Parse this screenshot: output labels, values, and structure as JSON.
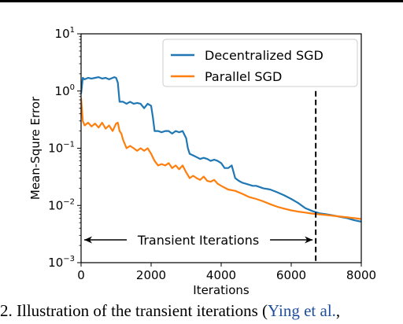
{
  "chart_data": {
    "type": "line",
    "title": "",
    "xlabel": "Iterations",
    "ylabel": "Mean-Squre Error",
    "xlim": [
      0,
      8000
    ],
    "ylim": [
      0.001,
      10
    ],
    "yscale": "log",
    "grid": false,
    "legend_placement": "top-right",
    "x_ticks": [
      {
        "value": 0,
        "label": "0"
      },
      {
        "value": 2000,
        "label": "2000"
      },
      {
        "value": 4000,
        "label": "4000"
      },
      {
        "value": 6000,
        "label": "6000"
      },
      {
        "value": 8000,
        "label": "8000"
      }
    ],
    "y_ticks": [
      {
        "value": 10,
        "base": "10",
        "exp": "1"
      },
      {
        "value": 1,
        "base": "10",
        "exp": "0"
      },
      {
        "value": 0.1,
        "base": "10",
        "exp": "−1"
      },
      {
        "value": 0.01,
        "base": "10",
        "exp": "−2"
      },
      {
        "value": 0.001,
        "base": "10",
        "exp": "−3"
      }
    ],
    "series": [
      {
        "name": "Decentralized SGD",
        "color": "#1f77b4",
        "x": [
          0,
          50,
          100,
          200,
          300,
          400,
          500,
          600,
          700,
          800,
          900,
          950,
          1000,
          1050,
          1100,
          1200,
          1300,
          1400,
          1500,
          1600,
          1700,
          1800,
          1900,
          2000,
          2050,
          2100,
          2200,
          2300,
          2400,
          2500,
          2600,
          2700,
          2800,
          2900,
          3000,
          3050,
          3100,
          3200,
          3300,
          3400,
          3500,
          3600,
          3700,
          3800,
          3900,
          4000,
          4100,
          4200,
          4300,
          4400,
          4500,
          4600,
          4700,
          4800,
          4900,
          5000,
          5200,
          5400,
          5600,
          5800,
          6000,
          6200,
          6400,
          6600,
          6800,
          7000,
          7200,
          7400,
          7600,
          7800,
          8000
        ],
        "y": [
          0.9,
          1.7,
          1.6,
          1.7,
          1.65,
          1.7,
          1.75,
          1.65,
          1.7,
          1.6,
          1.7,
          1.75,
          1.7,
          1.4,
          0.65,
          0.65,
          0.6,
          0.65,
          0.6,
          0.62,
          0.6,
          0.5,
          0.6,
          0.55,
          0.35,
          0.2,
          0.2,
          0.19,
          0.2,
          0.2,
          0.18,
          0.2,
          0.19,
          0.2,
          0.15,
          0.1,
          0.08,
          0.075,
          0.07,
          0.065,
          0.068,
          0.065,
          0.06,
          0.063,
          0.06,
          0.055,
          0.045,
          0.045,
          0.05,
          0.03,
          0.027,
          0.025,
          0.024,
          0.023,
          0.022,
          0.022,
          0.02,
          0.019,
          0.017,
          0.015,
          0.013,
          0.011,
          0.009,
          0.008,
          0.0073,
          0.007,
          0.0067,
          0.0063,
          0.006,
          0.0055,
          0.0052
        ]
      },
      {
        "name": "Parallel SGD",
        "color": "#ff7f0e",
        "x": [
          0,
          50,
          100,
          200,
          300,
          400,
          500,
          600,
          700,
          800,
          900,
          1000,
          1050,
          1100,
          1150,
          1200,
          1300,
          1400,
          1500,
          1600,
          1700,
          1800,
          1900,
          2000,
          2100,
          2200,
          2300,
          2400,
          2500,
          2600,
          2700,
          2800,
          2900,
          3000,
          3100,
          3200,
          3300,
          3400,
          3500,
          3600,
          3700,
          3800,
          3900,
          4000,
          4200,
          4400,
          4600,
          4800,
          5000,
          5200,
          5400,
          5600,
          5800,
          6000,
          6200,
          6400,
          6600,
          6800,
          7000,
          7200,
          7400,
          7600,
          7800,
          8000
        ],
        "y": [
          0.75,
          0.3,
          0.25,
          0.28,
          0.24,
          0.27,
          0.23,
          0.28,
          0.22,
          0.25,
          0.2,
          0.27,
          0.28,
          0.2,
          0.18,
          0.14,
          0.1,
          0.11,
          0.1,
          0.09,
          0.1,
          0.09,
          0.1,
          0.08,
          0.06,
          0.05,
          0.053,
          0.05,
          0.055,
          0.045,
          0.05,
          0.043,
          0.05,
          0.038,
          0.03,
          0.033,
          0.03,
          0.028,
          0.032,
          0.027,
          0.026,
          0.028,
          0.024,
          0.022,
          0.019,
          0.018,
          0.016,
          0.014,
          0.013,
          0.0118,
          0.0105,
          0.0095,
          0.0088,
          0.0082,
          0.0078,
          0.0075,
          0.0072,
          0.007,
          0.0068,
          0.0066,
          0.0064,
          0.0062,
          0.006,
          0.0058
        ]
      }
    ],
    "annotations": {
      "transient_label": "Transient Iterations",
      "transient_x_start": 0,
      "transient_x_end": 6700,
      "transient_y": 0.0025,
      "vline_x": 6700,
      "vline_y_top": 1.0
    }
  },
  "caption": {
    "prefix": "2.  Illustration of the transient iterations (",
    "citation": "Ying et al.",
    "suffix": ","
  }
}
